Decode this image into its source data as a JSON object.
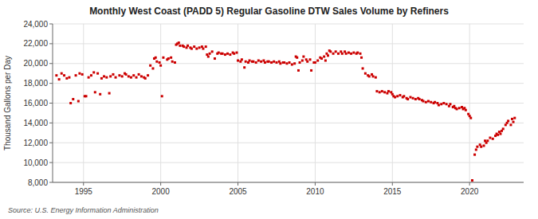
{
  "chart_data": {
    "type": "scatter",
    "title": "Monthly West Coast (PADD 5) Regular Gasoline DTW Sales Volume by Refiners",
    "ylabel": "Thousand Gallons per Day",
    "source": "Source: U.S. Energy Information Administration",
    "color": "#cc0000",
    "marker": "square",
    "grid": true,
    "xlim": [
      1993.0,
      2023.5
    ],
    "xticks": [
      1995,
      2000,
      2005,
      2010,
      2015,
      2020
    ],
    "ylim": [
      8000,
      24000
    ],
    "yticks": [
      {
        "value": 8000,
        "label": "8,000"
      },
      {
        "value": 10000,
        "label": "10,000"
      },
      {
        "value": 12000,
        "label": "12,000"
      },
      {
        "value": 14000,
        "label": "14,000"
      },
      {
        "value": 16000,
        "label": "16,000"
      },
      {
        "value": 18000,
        "label": "18,000"
      },
      {
        "value": 20000,
        "label": "20,000"
      },
      {
        "value": 22000,
        "label": "22,000"
      },
      {
        "value": 24000,
        "label": "24,000"
      }
    ],
    "x": [
      1993.25,
      1993.42,
      1993.58,
      1993.75,
      1993.92,
      1994.08,
      1994.17,
      1994.33,
      1994.5,
      1994.67,
      1994.75,
      1994.92,
      1995.08,
      1995.17,
      1995.33,
      1995.5,
      1995.67,
      1995.75,
      1995.92,
      1996.08,
      1996.17,
      1996.33,
      1996.5,
      1996.67,
      1996.75,
      1996.92,
      1997.08,
      1997.33,
      1997.5,
      1997.67,
      1997.75,
      1997.92,
      1998.08,
      1998.25,
      1998.42,
      1998.58,
      1998.75,
      1998.92,
      1999.0,
      1999.17,
      1999.33,
      1999.5,
      1999.58,
      1999.67,
      1999.75,
      1999.92,
      2000.0,
      2000.08,
      2000.17,
      2000.42,
      2000.5,
      2000.67,
      2000.75,
      2000.92,
      2001.0,
      2001.08,
      2001.17,
      2001.25,
      2001.42,
      2001.5,
      2001.67,
      2001.75,
      2001.92,
      2002.0,
      2002.17,
      2002.33,
      2002.5,
      2002.67,
      2002.75,
      2002.92,
      2003.0,
      2003.08,
      2003.17,
      2003.33,
      2003.5,
      2003.67,
      2003.75,
      2003.92,
      2004.0,
      2004.17,
      2004.33,
      2004.5,
      2004.67,
      2004.75,
      2004.92,
      2005.0,
      2005.17,
      2005.25,
      2005.42,
      2005.5,
      2005.67,
      2005.75,
      2005.92,
      2006.0,
      2006.17,
      2006.33,
      2006.5,
      2006.67,
      2006.75,
      2006.92,
      2007.0,
      2007.17,
      2007.33,
      2007.5,
      2007.67,
      2007.75,
      2007.92,
      2008.0,
      2008.17,
      2008.33,
      2008.5,
      2008.67,
      2008.75,
      2008.83,
      2008.92,
      2009.0,
      2009.17,
      2009.25,
      2009.42,
      2009.5,
      2009.67,
      2009.75,
      2009.92,
      2010.0,
      2010.17,
      2010.33,
      2010.42,
      2010.58,
      2010.67,
      2010.75,
      2010.83,
      2010.92,
      2011.0,
      2011.17,
      2011.33,
      2011.5,
      2011.67,
      2011.75,
      2011.92,
      2012.0,
      2012.17,
      2012.33,
      2012.5,
      2012.67,
      2012.75,
      2012.92,
      2013.0,
      2013.08,
      2013.25,
      2013.42,
      2013.5,
      2013.67,
      2013.75,
      2013.92,
      2014.0,
      2014.17,
      2014.33,
      2014.5,
      2014.67,
      2014.75,
      2014.92,
      2015.0,
      2015.08,
      2015.17,
      2015.33,
      2015.5,
      2015.67,
      2015.75,
      2015.92,
      2016.0,
      2016.17,
      2016.33,
      2016.5,
      2016.67,
      2016.75,
      2016.92,
      2017.0,
      2017.17,
      2017.33,
      2017.5,
      2017.67,
      2017.75,
      2017.92,
      2018.0,
      2018.17,
      2018.33,
      2018.5,
      2018.67,
      2018.75,
      2018.92,
      2019.0,
      2019.08,
      2019.17,
      2019.33,
      2019.5,
      2019.58,
      2019.67,
      2019.75,
      2019.92,
      2020.0,
      2020.08,
      2020.17,
      2020.33,
      2020.42,
      2020.5,
      2020.67,
      2020.75,
      2020.92,
      2021.0,
      2021.08,
      2021.17,
      2021.33,
      2021.5,
      2021.67,
      2021.75,
      2021.83,
      2021.92,
      2022.0,
      2022.08,
      2022.17,
      2022.33,
      2022.42,
      2022.5,
      2022.67,
      2022.75,
      2022.83,
      2022.92
    ],
    "values": [
      18800,
      18400,
      19000,
      18800,
      18500,
      18600,
      16000,
      16400,
      18800,
      16200,
      19000,
      18900,
      16700,
      16700,
      18600,
      18800,
      19100,
      17100,
      19000,
      16900,
      18500,
      18700,
      18600,
      17000,
      18700,
      18900,
      18600,
      18800,
      18700,
      19000,
      18900,
      18700,
      18600,
      18800,
      18600,
      18900,
      18700,
      18600,
      18500,
      18800,
      19800,
      19500,
      20500,
      20600,
      20200,
      20100,
      19800,
      16700,
      20600,
      20400,
      20500,
      20600,
      20200,
      20100,
      21900,
      22000,
      22100,
      21800,
      21800,
      21700,
      21600,
      21800,
      21600,
      21500,
      21700,
      21500,
      21600,
      21700,
      21500,
      21700,
      20900,
      20700,
      21000,
      21200,
      20500,
      21000,
      21100,
      21000,
      21000,
      20900,
      21000,
      20900,
      21100,
      21000,
      21100,
      20300,
      20200,
      20400,
      19600,
      20200,
      20100,
      20300,
      20200,
      20200,
      20100,
      20300,
      20200,
      20300,
      20100,
      20200,
      20200,
      20100,
      20200,
      20100,
      20200,
      20000,
      20100,
      20100,
      20000,
      20100,
      19900,
      20000,
      20700,
      20600,
      19300,
      20100,
      20300,
      20700,
      20400,
      20200,
      20400,
      19300,
      20100,
      20100,
      20300,
      20600,
      20500,
      20700,
      20300,
      21000,
      20800,
      21300,
      21200,
      21000,
      21200,
      21000,
      21200,
      21000,
      21200,
      21000,
      21100,
      21000,
      21100,
      21000,
      21100,
      21000,
      20600,
      19500,
      19000,
      18800,
      18700,
      18900,
      18700,
      18600,
      17200,
      17100,
      17200,
      17100,
      17000,
      17200,
      17100,
      16900,
      16700,
      16600,
      16700,
      16800,
      16600,
      16700,
      16500,
      16400,
      16600,
      16500,
      16400,
      16500,
      16400,
      16300,
      16200,
      16100,
      16200,
      16100,
      16000,
      16100,
      16000,
      15800,
      15900,
      16000,
      15900,
      15700,
      15900,
      15600,
      15700,
      15500,
      15400,
      15500,
      15600,
      15400,
      15500,
      15300,
      14900,
      14700,
      14500,
      8200,
      10800,
      11300,
      11600,
      11800,
      11600,
      11700,
      12200,
      12000,
      12200,
      12500,
      12400,
      12700,
      12900,
      12800,
      13100,
      12900,
      13200,
      13400,
      13800,
      14000,
      14200,
      13800,
      14400,
      14100,
      14500
    ]
  }
}
